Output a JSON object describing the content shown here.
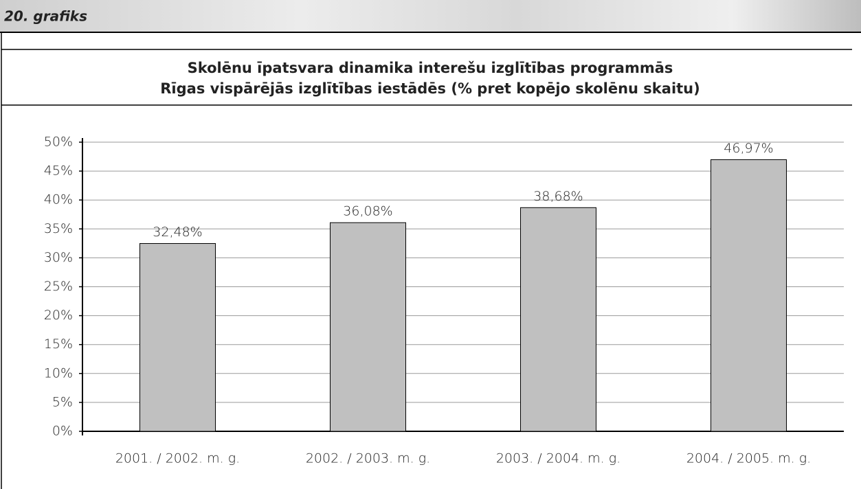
{
  "header_label": "20. grafiks",
  "chart_data": {
    "type": "bar",
    "title": [
      "Skolēnu īpatsvara dinamika interešu izglītības programmās",
      "Rīgas vispārējās izglītības iestādēs (% pret kopējo skolēnu skaitu)"
    ],
    "categories": [
      "2001. / 2002. m. g.",
      "2002. / 2003. m. g.",
      "2003. / 2004. m. g.",
      "2004. / 2005. m. g."
    ],
    "values": [
      32.48,
      36.08,
      38.68,
      46.97
    ],
    "value_labels": [
      "32,48%",
      "36,08%",
      "38,68%",
      "46,97%"
    ],
    "color": "#c0c0c0",
    "ylim": [
      0,
      50
    ],
    "yticks": [
      {
        "value": 0,
        "label": "0%"
      },
      {
        "value": 5,
        "label": "5%"
      },
      {
        "value": 10,
        "label": "10%"
      },
      {
        "value": 15,
        "label": "15%"
      },
      {
        "value": 20,
        "label": "20%"
      },
      {
        "value": 25,
        "label": "25%"
      },
      {
        "value": 30,
        "label": "30%"
      },
      {
        "value": 35,
        "label": "35%"
      },
      {
        "value": 40,
        "label": "40%"
      },
      {
        "value": 45,
        "label": "45%"
      },
      {
        "value": 50,
        "label": "50%"
      }
    ],
    "grid": true
  }
}
